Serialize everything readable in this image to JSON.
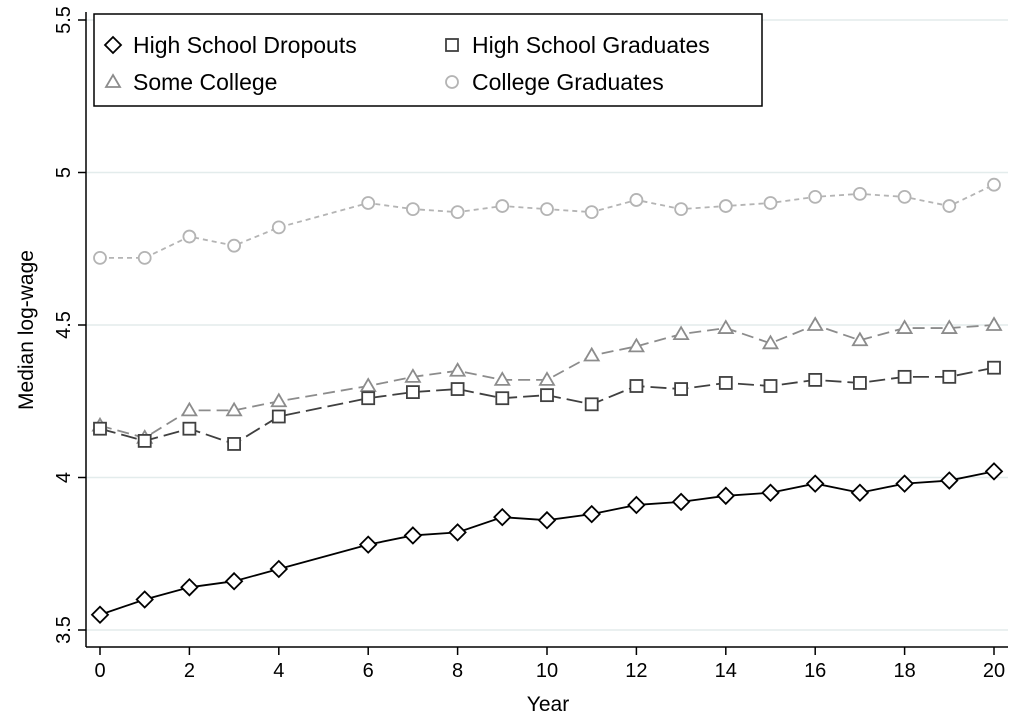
{
  "chart_data": {
    "type": "line",
    "xlabel": "Year",
    "ylabel": "Median log-wage",
    "xlim": [
      0,
      20
    ],
    "ylim": [
      3.5,
      5.5
    ],
    "xticks": [
      "0",
      "2",
      "4",
      "6",
      "8",
      "10",
      "12",
      "14",
      "16",
      "18",
      "20"
    ],
    "yticks": [
      "3.5",
      "4",
      "4.5",
      "5",
      "5.5"
    ],
    "grid": "horizontal",
    "legend_position": "top-left",
    "x": [
      0,
      1,
      2,
      3,
      4,
      6,
      7,
      8,
      9,
      10,
      11,
      12,
      13,
      14,
      15,
      16,
      17,
      18,
      19,
      20
    ],
    "series": [
      {
        "name": "High School Dropouts",
        "marker": "diamond",
        "color": "#000000",
        "dash": "solid",
        "values": [
          3.55,
          3.6,
          3.64,
          3.66,
          3.7,
          3.78,
          3.81,
          3.82,
          3.87,
          3.86,
          3.88,
          3.91,
          3.92,
          3.94,
          3.95,
          3.98,
          3.95,
          3.98,
          3.99,
          4.02
        ]
      },
      {
        "name": "High School Graduates",
        "marker": "square",
        "color": "#404040",
        "dash": "long-dash",
        "values": [
          4.16,
          4.12,
          4.16,
          4.11,
          4.2,
          4.26,
          4.28,
          4.29,
          4.26,
          4.27,
          4.24,
          4.3,
          4.29,
          4.31,
          4.3,
          4.32,
          4.31,
          4.33,
          4.33,
          4.36
        ]
      },
      {
        "name": "Some College",
        "marker": "triangle",
        "color": "#8c8c8c",
        "dash": "dash",
        "values": [
          4.17,
          4.13,
          4.22,
          4.22,
          4.25,
          4.3,
          4.33,
          4.35,
          4.32,
          4.32,
          4.4,
          4.43,
          4.47,
          4.49,
          4.44,
          4.5,
          4.45,
          4.49,
          4.49,
          4.5
        ]
      },
      {
        "name": "College Graduates",
        "marker": "circle",
        "color": "#b4b4b4",
        "dash": "short-dash",
        "values": [
          4.72,
          4.72,
          4.79,
          4.76,
          4.82,
          4.9,
          4.88,
          4.87,
          4.89,
          4.88,
          4.87,
          4.91,
          4.88,
          4.89,
          4.9,
          4.92,
          4.93,
          4.92,
          4.89,
          4.96
        ]
      }
    ]
  }
}
